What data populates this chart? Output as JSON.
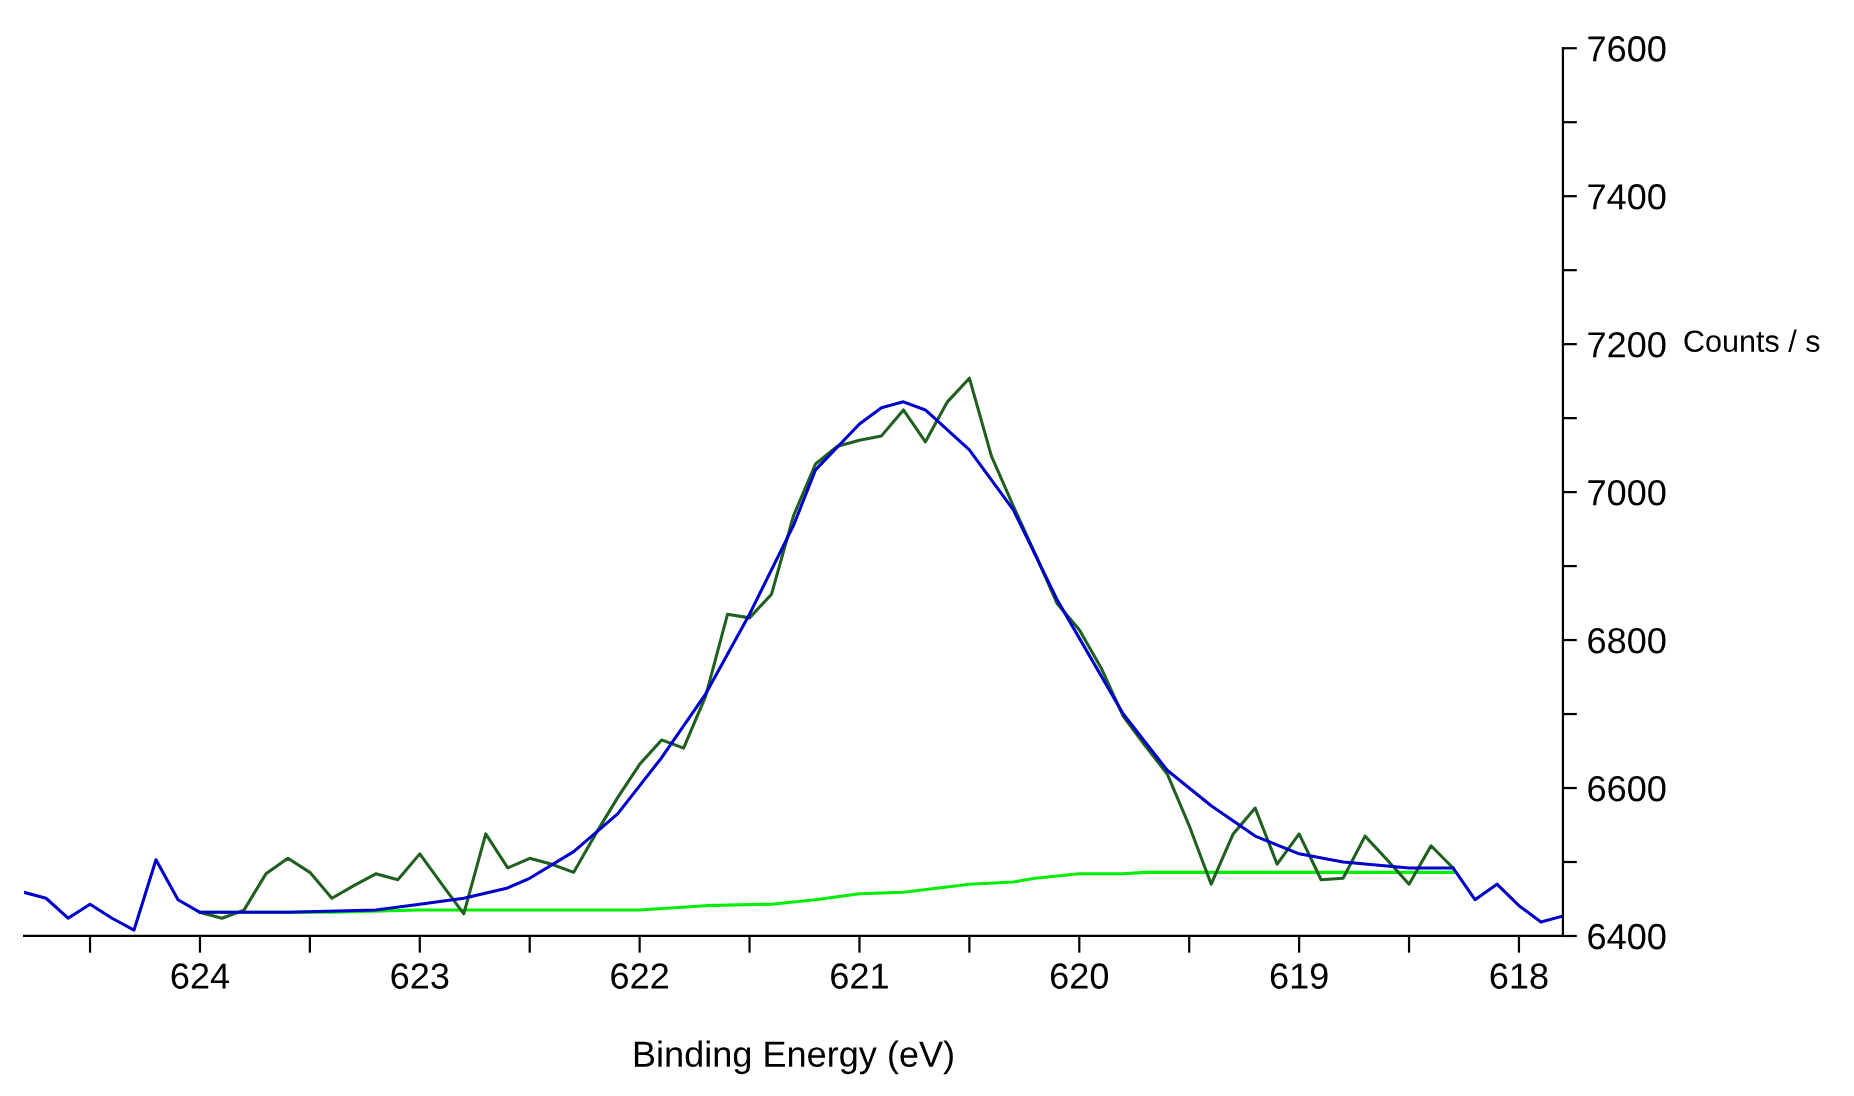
{
  "chart_data": {
    "type": "line",
    "xlabel": "Binding Energy (eV)",
    "ylabel": "Counts / s",
    "xlim": [
      624.8,
      617.8
    ],
    "ylim": [
      6400,
      7600
    ],
    "xticks": [
      624,
      {
        "value": 623.5,
        "label": null
      },
      623,
      {
        "value": 622.5,
        "label": null
      },
      622,
      {
        "value": 621.5,
        "label": null
      },
      621,
      {
        "value": 620.5,
        "label": null
      },
      620,
      {
        "value": 619.5,
        "label": null
      },
      619,
      {
        "value": 618.5,
        "label": null
      },
      618,
      {
        "value": 624.5,
        "label": null
      }
    ],
    "yticks": [
      6400,
      {
        "value": 6500,
        "label": null
      },
      6600,
      {
        "value": 6700,
        "label": null
      },
      6800,
      {
        "value": 6900,
        "label": null
      },
      7000,
      {
        "value": 7100,
        "label": null
      },
      7200,
      {
        "value": 7300,
        "label": null
      },
      7400,
      {
        "value": 7500,
        "label": null
      },
      7600
    ],
    "grid": false,
    "legend": false,
    "marker": "none",
    "line_style": "solid",
    "series": [
      {
        "color": "#00ee00",
        "x": [
          624.0,
          623.4,
          623.0,
          622.0,
          621.7,
          621.4,
          621.2,
          621.0,
          620.8,
          620.5,
          620.3,
          620.2,
          620.0,
          619.8,
          619.7,
          618.3
        ],
        "values": [
          6432,
          6432,
          6435,
          6435,
          6441,
          6443,
          6449,
          6457,
          6459,
          6470,
          6473,
          6478,
          6484,
          6484,
          6486,
          6486
        ]
      },
      {
        "color": "#1f5f1f",
        "x": [
          624.0,
          623.9,
          623.8,
          623.7,
          623.6,
          623.5,
          623.4,
          623.3,
          623.2,
          623.1,
          623.0,
          622.9,
          622.8,
          622.7,
          622.6,
          622.5,
          622.4,
          622.3,
          622.2,
          622.1,
          622.0,
          621.9,
          621.8,
          621.7,
          621.6,
          621.5,
          621.4,
          621.3,
          621.2,
          621.1,
          621.0,
          620.9,
          620.8,
          620.7,
          620.6,
          620.5,
          620.4,
          620.3,
          620.2,
          620.1,
          620.0,
          619.9,
          619.8,
          619.7,
          619.6,
          619.5,
          619.4,
          619.3,
          619.2,
          619.1,
          619.0,
          618.9,
          618.8,
          618.7,
          618.6,
          618.5,
          618.4,
          618.3
        ],
        "values": [
          6432,
          6424,
          6435,
          6484,
          6505,
          6486,
          6451,
          6468,
          6484,
          6476,
          6511,
          6470,
          6430,
          6538,
          6492,
          6505,
          6497,
          6486,
          6538,
          6587,
          6632,
          6665,
          6654,
          6724,
          6835,
          6830,
          6862,
          6968,
          7038,
          7062,
          7070,
          7076,
          7111,
          7068,
          7122,
          7154,
          7049,
          6981,
          6916,
          6849,
          6814,
          6762,
          6697,
          6657,
          6619,
          6549,
          6470,
          6538,
          6573,
          6497,
          6538,
          6476,
          6478,
          6535,
          6503,
          6470,
          6522,
          6492
        ]
      },
      {
        "color": "#0000cc",
        "x": [
          624.8,
          624.7,
          624.6,
          624.5,
          624.4,
          624.3,
          624.2,
          624.1,
          624.0,
          623.6,
          623.2,
          623.0,
          622.8,
          622.6,
          622.5,
          622.3,
          622.1,
          621.9,
          621.7,
          621.5,
          621.3,
          621.2,
          621.0,
          620.9,
          620.8,
          620.7,
          620.5,
          620.3,
          620.1,
          619.8,
          619.6,
          619.4,
          619.2,
          619.0,
          618.8,
          618.5,
          618.3,
          618.2,
          618.1,
          618.0,
          617.9,
          617.8
        ],
        "values": [
          6459,
          6451,
          6424,
          6443,
          6424,
          6408,
          6503,
          6449,
          6432,
          6432,
          6435,
          6443,
          6451,
          6465,
          6478,
          6514,
          6565,
          6641,
          6727,
          6835,
          6955,
          7030,
          7092,
          7114,
          7122,
          7111,
          7057,
          6976,
          6854,
          6700,
          6624,
          6576,
          6535,
          6511,
          6500,
          6492,
          6492,
          6449,
          6470,
          6441,
          6419,
          6427
        ]
      }
    ]
  }
}
